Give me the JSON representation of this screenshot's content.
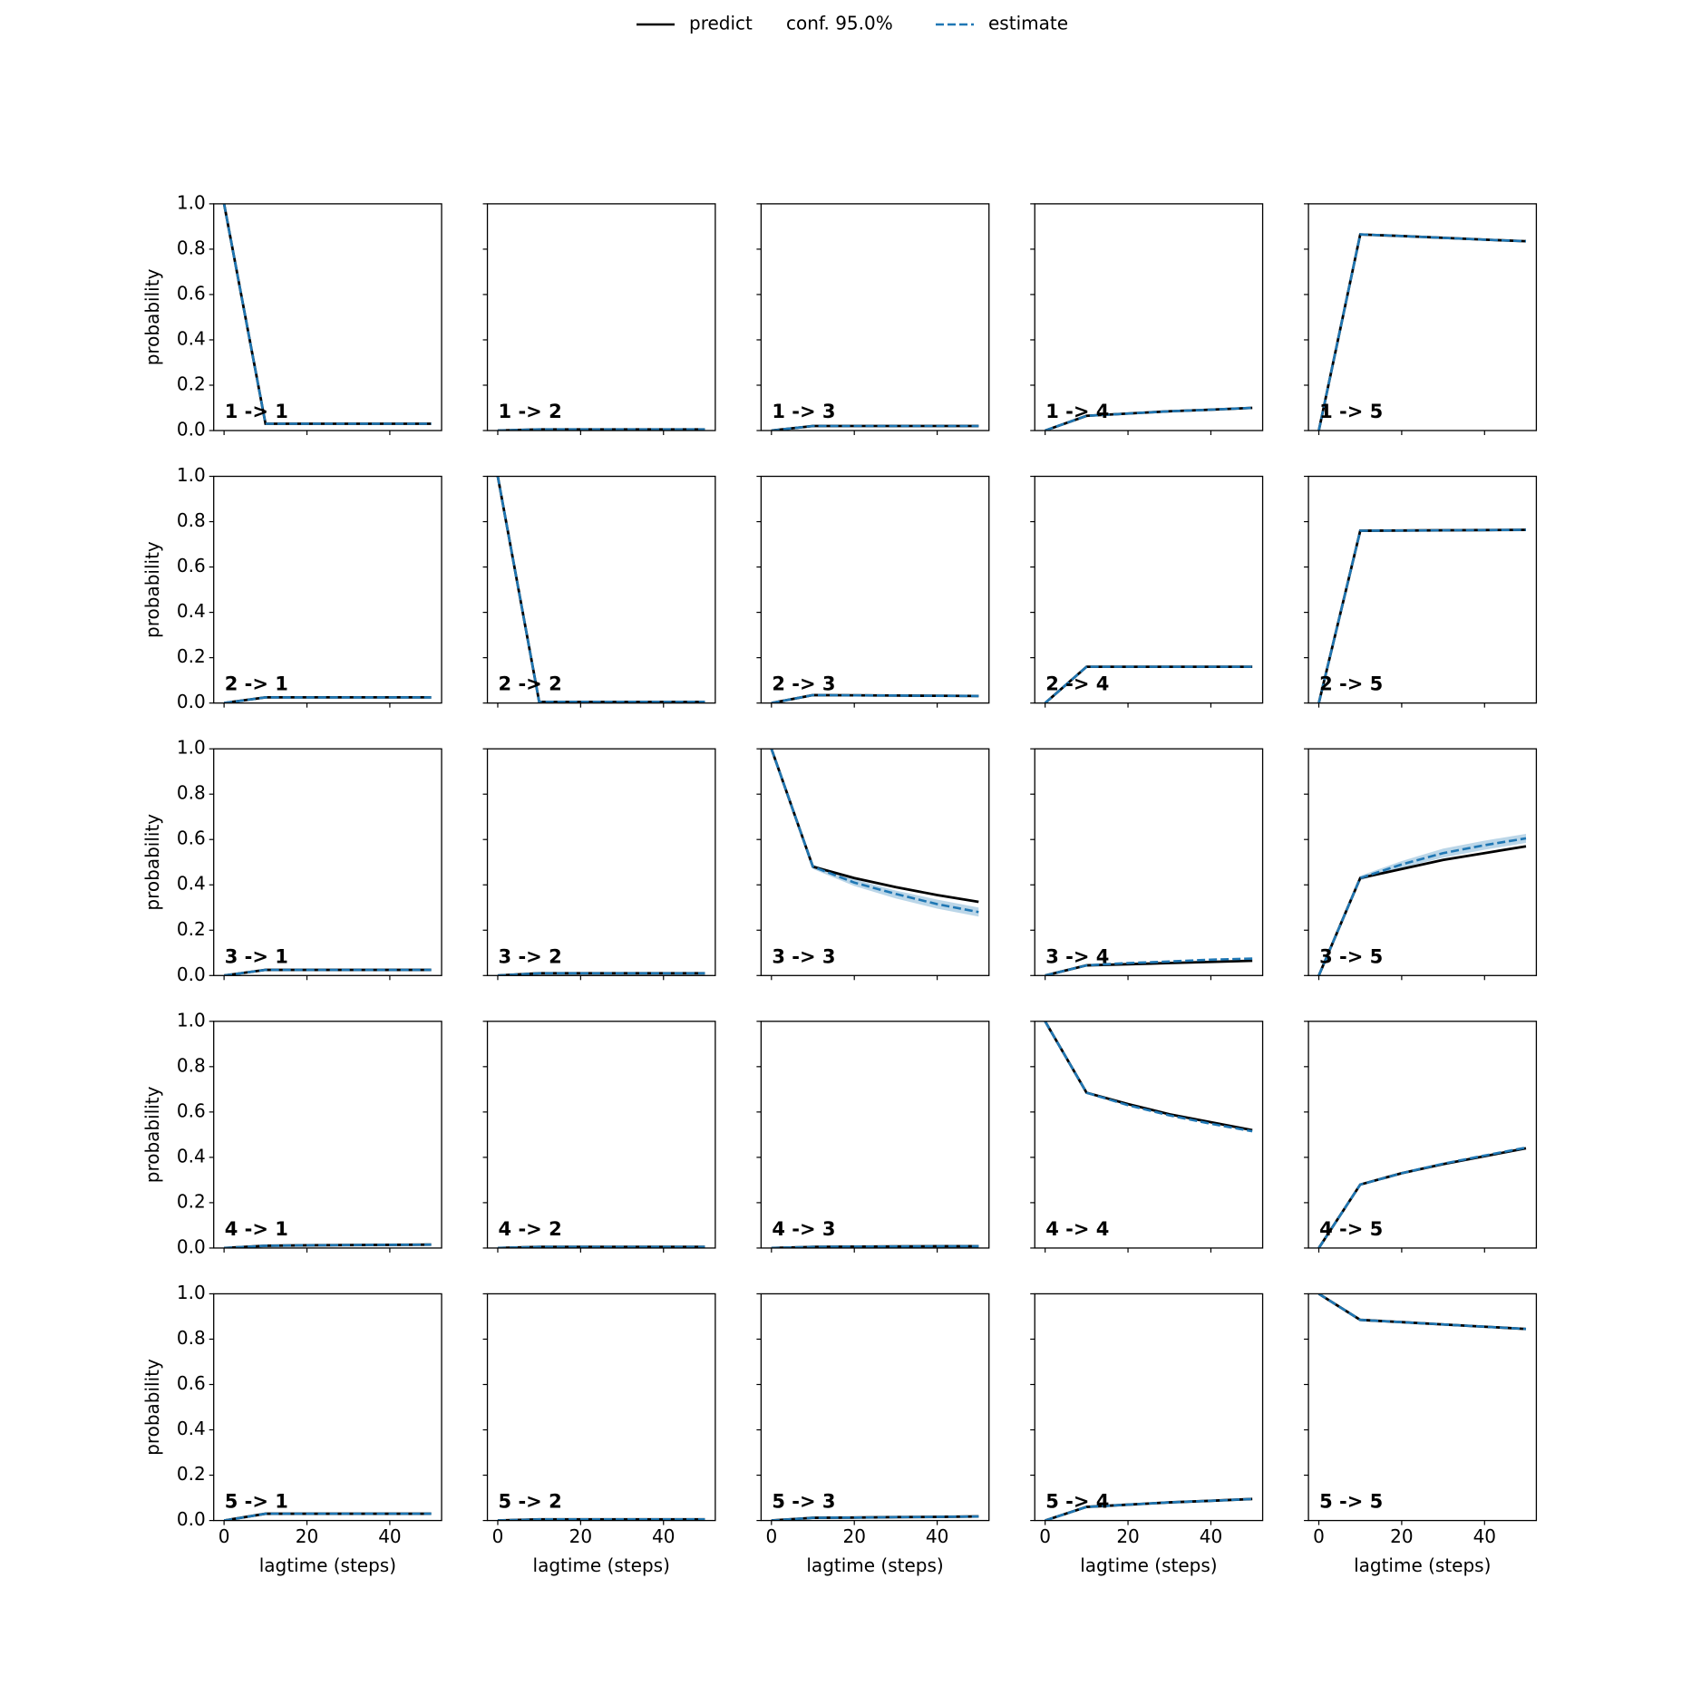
{
  "chart_data": {
    "type": "line",
    "x": [
      0,
      10,
      20,
      30,
      40,
      50
    ],
    "xlim": [
      -2.5,
      52.5
    ],
    "xticks": [
      0,
      20,
      40
    ],
    "ylim": [
      0,
      1
    ],
    "yticks": [
      {
        "value": 0,
        "label": "0.0"
      },
      0.2,
      0.4,
      0.6,
      0.8,
      {
        "value": 1,
        "label": "1.0"
      }
    ],
    "xlabel": "lagtime (steps)",
    "ylabel": "probability",
    "grid": false,
    "legend": "top",
    "series": [
      {
        "name": "predict",
        "color": "#000000",
        "style": "solid"
      },
      {
        "name": "conf. 95.0%",
        "color": "#1f77b4",
        "style": "band"
      },
      {
        "name": "estimate",
        "color": "#1f77b4",
        "style": "dashed"
      }
    ],
    "panels": [
      {
        "label": "1 -> 1",
        "predict": [
          1,
          0.03,
          0.03,
          0.03,
          0.03,
          0.03
        ],
        "estimate": [
          1,
          0.03,
          0.03,
          0.03,
          0.03,
          0.03
        ]
      },
      {
        "label": "1 -> 2",
        "predict": [
          0,
          0.005,
          0.005,
          0.005,
          0.005,
          0.005
        ],
        "estimate": [
          0,
          0.005,
          0.005,
          0.005,
          0.005,
          0.005
        ]
      },
      {
        "label": "1 -> 3",
        "predict": [
          0,
          0.02,
          0.02,
          0.02,
          0.02,
          0.02
        ],
        "estimate": [
          0,
          0.02,
          0.02,
          0.02,
          0.02,
          0.02
        ]
      },
      {
        "label": "1 -> 4",
        "predict": [
          0,
          0.065,
          0.075,
          0.085,
          0.092,
          0.1
        ],
        "estimate": [
          0,
          0.065,
          0.075,
          0.085,
          0.092,
          0.1
        ]
      },
      {
        "label": "1 -> 5",
        "predict": [
          0,
          0.865,
          0.858,
          0.85,
          0.842,
          0.835
        ],
        "estimate": [
          0,
          0.865,
          0.858,
          0.85,
          0.842,
          0.835
        ]
      },
      {
        "label": "2 -> 1",
        "predict": [
          0,
          0.025,
          0.025,
          0.025,
          0.025,
          0.025
        ],
        "estimate": [
          0,
          0.025,
          0.025,
          0.025,
          0.025,
          0.025
        ]
      },
      {
        "label": "2 -> 2",
        "predict": [
          1,
          0.005,
          0.005,
          0.005,
          0.005,
          0.005
        ],
        "estimate": [
          1,
          0.005,
          0.005,
          0.005,
          0.005,
          0.005
        ]
      },
      {
        "label": "2 -> 3",
        "predict": [
          0,
          0.035,
          0.034,
          0.033,
          0.032,
          0.031
        ],
        "estimate": [
          0,
          0.035,
          0.034,
          0.033,
          0.032,
          0.031
        ]
      },
      {
        "label": "2 -> 4",
        "predict": [
          0,
          0.16,
          0.16,
          0.16,
          0.16,
          0.16
        ],
        "estimate": [
          0,
          0.16,
          0.16,
          0.16,
          0.16,
          0.16
        ]
      },
      {
        "label": "2 -> 5",
        "predict": [
          0,
          0.76,
          0.761,
          0.762,
          0.763,
          0.764
        ],
        "estimate": [
          0,
          0.76,
          0.761,
          0.762,
          0.763,
          0.764
        ]
      },
      {
        "label": "3 -> 1",
        "predict": [
          0,
          0.025,
          0.025,
          0.025,
          0.025,
          0.025
        ],
        "estimate": [
          0,
          0.025,
          0.025,
          0.025,
          0.025,
          0.025
        ]
      },
      {
        "label": "3 -> 2",
        "predict": [
          0,
          0.01,
          0.01,
          0.01,
          0.01,
          0.01
        ],
        "estimate": [
          0,
          0.01,
          0.01,
          0.01,
          0.01,
          0.01
        ]
      },
      {
        "label": "3 -> 3",
        "predict": [
          1,
          0.48,
          0.43,
          0.39,
          0.355,
          0.325
        ],
        "estimate": [
          1,
          0.48,
          0.41,
          0.36,
          0.315,
          0.28
        ],
        "conf_lower": [
          1,
          0.47,
          0.395,
          0.34,
          0.295,
          0.26
        ],
        "conf_upper": [
          1,
          0.49,
          0.425,
          0.375,
          0.335,
          0.3
        ]
      },
      {
        "label": "3 -> 4",
        "predict": [
          0,
          0.045,
          0.05,
          0.055,
          0.06,
          0.065
        ],
        "estimate": [
          0,
          0.045,
          0.055,
          0.062,
          0.07,
          0.075
        ]
      },
      {
        "label": "3 -> 5",
        "predict": [
          0,
          0.43,
          0.47,
          0.51,
          0.54,
          0.57
        ],
        "estimate": [
          0,
          0.43,
          0.49,
          0.54,
          0.575,
          0.605
        ],
        "conf_lower": [
          0,
          0.42,
          0.475,
          0.52,
          0.555,
          0.585
        ],
        "conf_upper": [
          0,
          0.44,
          0.505,
          0.56,
          0.595,
          0.625
        ]
      },
      {
        "label": "4 -> 1",
        "predict": [
          0,
          0.01,
          0.012,
          0.013,
          0.014,
          0.015
        ],
        "estimate": [
          0,
          0.01,
          0.012,
          0.013,
          0.014,
          0.015
        ]
      },
      {
        "label": "4 -> 2",
        "predict": [
          0,
          0.005,
          0.005,
          0.005,
          0.005,
          0.005
        ],
        "estimate": [
          0,
          0.005,
          0.005,
          0.005,
          0.005,
          0.005
        ]
      },
      {
        "label": "4 -> 3",
        "predict": [
          0,
          0.005,
          0.006,
          0.007,
          0.008,
          0.008
        ],
        "estimate": [
          0,
          0.005,
          0.006,
          0.007,
          0.008,
          0.008
        ]
      },
      {
        "label": "4 -> 4",
        "predict": [
          1,
          0.685,
          0.635,
          0.59,
          0.555,
          0.52
        ],
        "estimate": [
          1,
          0.685,
          0.63,
          0.585,
          0.548,
          0.515
        ]
      },
      {
        "label": "4 -> 5",
        "predict": [
          0,
          0.28,
          0.33,
          0.37,
          0.405,
          0.44
        ],
        "estimate": [
          0,
          0.28,
          0.33,
          0.372,
          0.408,
          0.443
        ]
      },
      {
        "label": "5 -> 1",
        "predict": [
          0,
          0.03,
          0.03,
          0.03,
          0.03,
          0.03
        ],
        "estimate": [
          0,
          0.03,
          0.03,
          0.03,
          0.03,
          0.03
        ]
      },
      {
        "label": "5 -> 2",
        "predict": [
          0,
          0.005,
          0.005,
          0.005,
          0.005,
          0.005
        ],
        "estimate": [
          0,
          0.005,
          0.005,
          0.005,
          0.005,
          0.005
        ]
      },
      {
        "label": "5 -> 3",
        "predict": [
          0,
          0.012,
          0.013,
          0.015,
          0.016,
          0.018
        ],
        "estimate": [
          0,
          0.012,
          0.013,
          0.015,
          0.016,
          0.018
        ]
      },
      {
        "label": "5 -> 4",
        "predict": [
          0,
          0.06,
          0.07,
          0.08,
          0.087,
          0.095
        ],
        "estimate": [
          0,
          0.06,
          0.07,
          0.08,
          0.087,
          0.095
        ]
      },
      {
        "label": "5 -> 5",
        "predict": [
          1,
          0.885,
          0.875,
          0.865,
          0.855,
          0.845
        ],
        "estimate": [
          1,
          0.885,
          0.875,
          0.865,
          0.855,
          0.845
        ]
      }
    ]
  }
}
